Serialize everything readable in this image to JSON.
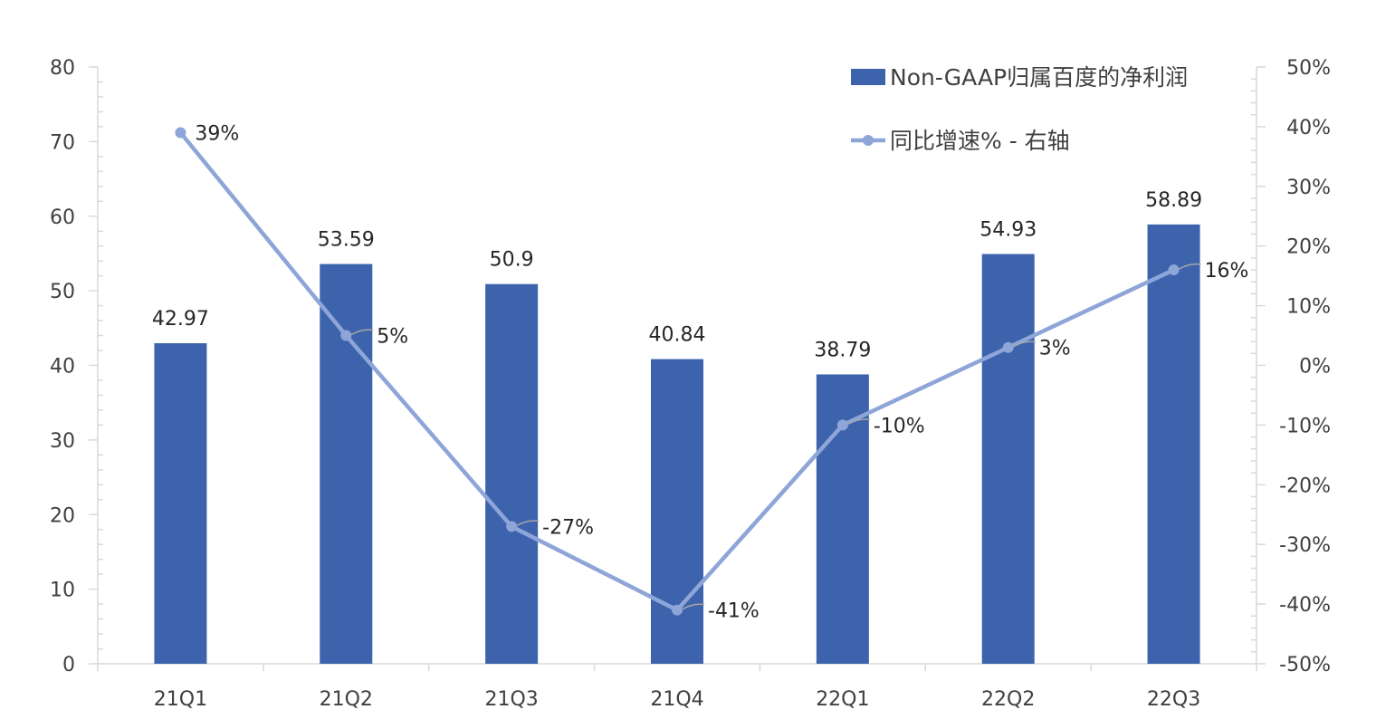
{
  "chart_data": {
    "type": "bar",
    "categories": [
      "21Q1",
      "21Q2",
      "21Q3",
      "21Q4",
      "22Q1",
      "22Q2",
      "22Q3"
    ],
    "series": [
      {
        "name": "Non-GAAP归属百度的净利润",
        "type": "bar",
        "axis": "left",
        "values": [
          42.97,
          53.59,
          50.9,
          40.84,
          38.79,
          54.93,
          58.89
        ],
        "labels": [
          "42.97",
          "53.59",
          "50.9",
          "40.84",
          "38.79",
          "54.93",
          "58.89"
        ],
        "color": "#3C63AC"
      },
      {
        "name": "同比增速% - 右轴",
        "type": "line",
        "axis": "right",
        "values": [
          39,
          5,
          -27,
          -41,
          -10,
          3,
          16
        ],
        "labels": [
          "39%",
          "5%",
          "-27%",
          "-41%",
          "-10%",
          "3%",
          "16%"
        ],
        "color": "#8EA5D8"
      }
    ],
    "y_left": {
      "ylim": [
        0,
        80
      ],
      "ticks": [
        0,
        10,
        20,
        30,
        40,
        50,
        60,
        70,
        80
      ],
      "tick_labels": [
        "0",
        "10",
        "20",
        "30",
        "40",
        "50",
        "60",
        "70",
        "80"
      ]
    },
    "y_right": {
      "ylim": [
        -50,
        50
      ],
      "ticks": [
        -50,
        -40,
        -30,
        -20,
        -10,
        0,
        10,
        20,
        30,
        40,
        50
      ],
      "tick_labels": [
        "-50%",
        "-40%",
        "-30%",
        "-20%",
        "-10%",
        "0%",
        "10%",
        "20%",
        "30%",
        "40%",
        "50%"
      ]
    },
    "grid": false,
    "legend_position": "top-right"
  }
}
